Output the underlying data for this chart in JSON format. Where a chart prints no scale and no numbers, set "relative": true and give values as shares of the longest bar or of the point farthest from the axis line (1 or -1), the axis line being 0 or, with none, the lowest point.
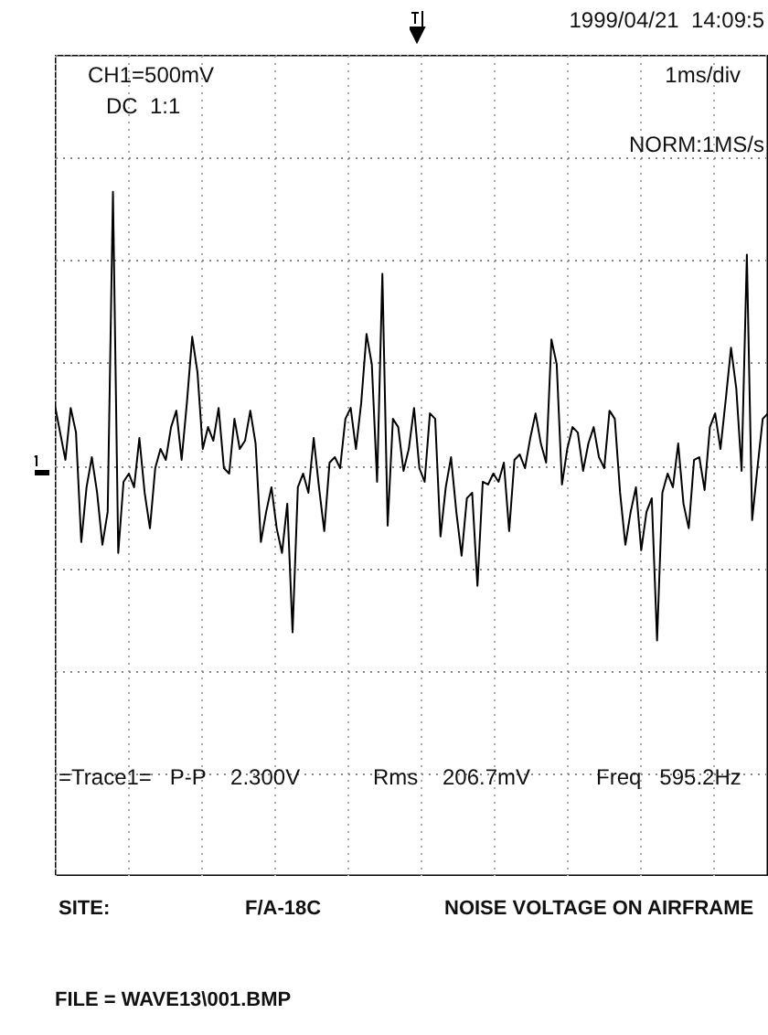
{
  "chart_data": {
    "type": "line",
    "title": "NOISE VOLTAGE ON AIRFRAME",
    "relative": true,
    "grid": true,
    "line_style": "solid",
    "annotations": [
      "1999/04/21  14:09:5",
      "CH1=500mV",
      "DC  1:1",
      "1ms/div",
      "NORM:1MS/s",
      "=Trace1=   P-P    2.300V",
      "Rms    206.7mV",
      "Freq   595.2Hz",
      "SITE:",
      "F/A-18C",
      "FILE = WAVE13\\001.BMP"
    ],
    "categories": [
      null,
      null,
      null,
      null,
      null,
      null,
      null,
      null,
      null,
      null,
      null,
      null,
      null,
      null,
      null,
      null,
      null,
      null,
      null,
      null,
      null,
      null,
      null,
      null,
      null,
      null,
      null,
      null,
      null,
      null,
      null,
      null,
      null,
      null,
      null,
      null,
      null,
      null,
      null,
      null,
      null,
      null,
      null,
      null,
      null,
      null,
      null,
      null,
      null,
      null,
      null,
      null,
      null,
      null,
      null,
      null,
      null,
      null,
      null,
      null,
      null,
      null,
      null,
      null,
      null,
      null,
      null,
      null,
      null,
      null,
      null,
      null,
      null,
      null,
      null,
      null,
      null,
      null,
      null,
      null,
      null,
      null,
      null,
      null,
      null,
      null,
      null,
      null,
      null,
      null,
      null,
      null,
      null,
      null,
      null,
      null,
      null,
      null,
      null,
      null,
      null,
      null,
      null,
      null,
      null,
      null,
      null,
      null,
      null,
      null,
      null,
      null,
      null,
      null,
      null,
      null,
      null,
      null,
      null,
      null,
      null,
      null,
      null,
      null,
      null,
      null,
      null,
      null,
      null,
      null,
      null,
      null,
      null,
      null,
      null,
      null
    ],
    "series": [
      {
        "color": "#000000",
        "values": [
          0.22,
          0.12,
          0.02,
          0.21,
          0.12,
          -0.28,
          -0.08,
          0.03,
          -0.1,
          -0.29,
          -0.17,
          1,
          -0.32,
          -0.06,
          -0.03,
          -0.08,
          0.1,
          -0.1,
          -0.23,
          -0.01,
          0.06,
          0.02,
          0.14,
          0.2,
          0.02,
          0.23,
          0.47,
          0.34,
          0.06,
          0.14,
          0.09,
          0.21,
          -0.01,
          -0.03,
          0.17,
          0.06,
          0.09,
          0.2,
          0.08,
          -0.28,
          -0.17,
          -0.08,
          -0.23,
          -0.32,
          -0.14,
          -0.61,
          -0.08,
          -0.03,
          -0.1,
          0.1,
          -0.08,
          -0.24,
          0.01,
          0.03,
          -0.01,
          0.17,
          0.21,
          0.06,
          0.23,
          0.48,
          0.37,
          -0.06,
          0.7,
          -0.22,
          0.17,
          0.14,
          -0.02,
          0.06,
          0.21,
          -0.01,
          -0.06,
          0.19,
          0.17,
          -0.26,
          -0.08,
          0.03,
          -0.17,
          -0.33,
          -0.12,
          -0.1,
          -0.44,
          -0.06,
          -0.07,
          -0.03,
          -0.06,
          0.01,
          -0.24,
          0.02,
          0.04,
          -0.01,
          0.1,
          0.19,
          0.08,
          0.01,
          0.46,
          0.37,
          -0.07,
          0.06,
          0.14,
          0.12,
          -0.02,
          0.08,
          0.14,
          0.03,
          -0.01,
          0.2,
          0.17,
          -0.1,
          -0.29,
          -0.17,
          -0.08,
          -0.31,
          -0.17,
          -0.12,
          -0.64,
          -0.1,
          -0.03,
          -0.08,
          0.08,
          -0.14,
          -0.23,
          0.02,
          0.03,
          -0.09,
          0.14,
          0.19,
          0.06,
          0.24,
          0.43,
          0.28,
          -0.02,
          0.77,
          -0.2,
          -0.01,
          0.17,
          0.19
        ]
      }
    ]
  }
}
